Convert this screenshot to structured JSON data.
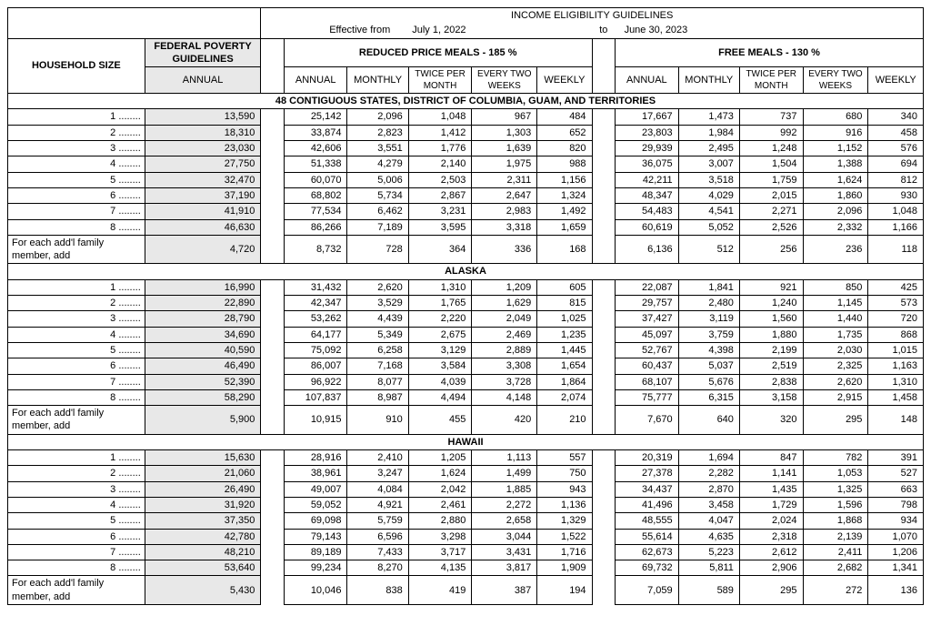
{
  "title": "INCOME ELIGIBILITY GUIDELINES",
  "effective_label": "Effective from",
  "effective_from": "July 1, 2022",
  "effective_to_label": "to",
  "effective_to": "June 30, 2023",
  "col_household": "HOUSEHOLD SIZE",
  "col_fpg_header": "FEDERAL POVERTY GUIDELINES",
  "col_fpg_sub": "ANNUAL",
  "reduced_header": "REDUCED PRICE MEALS - 185 %",
  "free_header": "FREE MEALS - 130 %",
  "sub_annual": "ANNUAL",
  "sub_monthly": "MONTHLY",
  "sub_twice": "TWICE PER MONTH",
  "sub_two_weeks": "EVERY TWO WEEKS",
  "sub_weekly": "WEEKLY",
  "addl_label": "For each add'l family member, add",
  "sections": [
    {
      "name": "48 CONTIGUOUS STATES, DISTRICT OF COLUMBIA, GUAM, AND TERRITORIES",
      "rows": [
        {
          "size": "1 ........",
          "fpg": "13,590",
          "r": [
            "25,142",
            "2,096",
            "1,048",
            "967",
            "484"
          ],
          "f": [
            "17,667",
            "1,473",
            "737",
            "680",
            "340"
          ]
        },
        {
          "size": "2 ........",
          "fpg": "18,310",
          "r": [
            "33,874",
            "2,823",
            "1,412",
            "1,303",
            "652"
          ],
          "f": [
            "23,803",
            "1,984",
            "992",
            "916",
            "458"
          ]
        },
        {
          "size": "3 ........",
          "fpg": "23,030",
          "r": [
            "42,606",
            "3,551",
            "1,776",
            "1,639",
            "820"
          ],
          "f": [
            "29,939",
            "2,495",
            "1,248",
            "1,152",
            "576"
          ]
        },
        {
          "size": "4 ........",
          "fpg": "27,750",
          "r": [
            "51,338",
            "4,279",
            "2,140",
            "1,975",
            "988"
          ],
          "f": [
            "36,075",
            "3,007",
            "1,504",
            "1,388",
            "694"
          ]
        },
        {
          "size": "5 ........",
          "fpg": "32,470",
          "r": [
            "60,070",
            "5,006",
            "2,503",
            "2,311",
            "1,156"
          ],
          "f": [
            "42,211",
            "3,518",
            "1,759",
            "1,624",
            "812"
          ]
        },
        {
          "size": "6 ........",
          "fpg": "37,190",
          "r": [
            "68,802",
            "5,734",
            "2,867",
            "2,647",
            "1,324"
          ],
          "f": [
            "48,347",
            "4,029",
            "2,015",
            "1,860",
            "930"
          ]
        },
        {
          "size": "7 ........",
          "fpg": "41,910",
          "r": [
            "77,534",
            "6,462",
            "3,231",
            "2,983",
            "1,492"
          ],
          "f": [
            "54,483",
            "4,541",
            "2,271",
            "2,096",
            "1,048"
          ]
        },
        {
          "size": "8 ........",
          "fpg": "46,630",
          "r": [
            "86,266",
            "7,189",
            "3,595",
            "3,318",
            "1,659"
          ],
          "f": [
            "60,619",
            "5,052",
            "2,526",
            "2,332",
            "1,166"
          ]
        }
      ],
      "addl": {
        "fpg": "4,720",
        "r": [
          "8,732",
          "728",
          "364",
          "336",
          "168"
        ],
        "f": [
          "6,136",
          "512",
          "256",
          "236",
          "118"
        ]
      }
    },
    {
      "name": "ALASKA",
      "rows": [
        {
          "size": "1 ........",
          "fpg": "16,990",
          "r": [
            "31,432",
            "2,620",
            "1,310",
            "1,209",
            "605"
          ],
          "f": [
            "22,087",
            "1,841",
            "921",
            "850",
            "425"
          ]
        },
        {
          "size": "2 ........",
          "fpg": "22,890",
          "r": [
            "42,347",
            "3,529",
            "1,765",
            "1,629",
            "815"
          ],
          "f": [
            "29,757",
            "2,480",
            "1,240",
            "1,145",
            "573"
          ]
        },
        {
          "size": "3 ........",
          "fpg": "28,790",
          "r": [
            "53,262",
            "4,439",
            "2,220",
            "2,049",
            "1,025"
          ],
          "f": [
            "37,427",
            "3,119",
            "1,560",
            "1,440",
            "720"
          ]
        },
        {
          "size": "4 ........",
          "fpg": "34,690",
          "r": [
            "64,177",
            "5,349",
            "2,675",
            "2,469",
            "1,235"
          ],
          "f": [
            "45,097",
            "3,759",
            "1,880",
            "1,735",
            "868"
          ]
        },
        {
          "size": "5 ........",
          "fpg": "40,590",
          "r": [
            "75,092",
            "6,258",
            "3,129",
            "2,889",
            "1,445"
          ],
          "f": [
            "52,767",
            "4,398",
            "2,199",
            "2,030",
            "1,015"
          ]
        },
        {
          "size": "6 ........",
          "fpg": "46,490",
          "r": [
            "86,007",
            "7,168",
            "3,584",
            "3,308",
            "1,654"
          ],
          "f": [
            "60,437",
            "5,037",
            "2,519",
            "2,325",
            "1,163"
          ]
        },
        {
          "size": "7 ........",
          "fpg": "52,390",
          "r": [
            "96,922",
            "8,077",
            "4,039",
            "3,728",
            "1,864"
          ],
          "f": [
            "68,107",
            "5,676",
            "2,838",
            "2,620",
            "1,310"
          ]
        },
        {
          "size": "8 ........",
          "fpg": "58,290",
          "r": [
            "107,837",
            "8,987",
            "4,494",
            "4,148",
            "2,074"
          ],
          "f": [
            "75,777",
            "6,315",
            "3,158",
            "2,915",
            "1,458"
          ]
        }
      ],
      "addl": {
        "fpg": "5,900",
        "r": [
          "10,915",
          "910",
          "455",
          "420",
          "210"
        ],
        "f": [
          "7,670",
          "640",
          "320",
          "295",
          "148"
        ]
      }
    },
    {
      "name": "HAWAII",
      "rows": [
        {
          "size": "1 ........",
          "fpg": "15,630",
          "r": [
            "28,916",
            "2,410",
            "1,205",
            "1,113",
            "557"
          ],
          "f": [
            "20,319",
            "1,694",
            "847",
            "782",
            "391"
          ]
        },
        {
          "size": "2 ........",
          "fpg": "21,060",
          "r": [
            "38,961",
            "3,247",
            "1,624",
            "1,499",
            "750"
          ],
          "f": [
            "27,378",
            "2,282",
            "1,141",
            "1,053",
            "527"
          ]
        },
        {
          "size": "3 ........",
          "fpg": "26,490",
          "r": [
            "49,007",
            "4,084",
            "2,042",
            "1,885",
            "943"
          ],
          "f": [
            "34,437",
            "2,870",
            "1,435",
            "1,325",
            "663"
          ]
        },
        {
          "size": "4 ........",
          "fpg": "31,920",
          "r": [
            "59,052",
            "4,921",
            "2,461",
            "2,272",
            "1,136"
          ],
          "f": [
            "41,496",
            "3,458",
            "1,729",
            "1,596",
            "798"
          ]
        },
        {
          "size": "5 ........",
          "fpg": "37,350",
          "r": [
            "69,098",
            "5,759",
            "2,880",
            "2,658",
            "1,329"
          ],
          "f": [
            "48,555",
            "4,047",
            "2,024",
            "1,868",
            "934"
          ]
        },
        {
          "size": "6 ........",
          "fpg": "42,780",
          "r": [
            "79,143",
            "6,596",
            "3,298",
            "3,044",
            "1,522"
          ],
          "f": [
            "55,614",
            "4,635",
            "2,318",
            "2,139",
            "1,070"
          ]
        },
        {
          "size": "7 ........",
          "fpg": "48,210",
          "r": [
            "89,189",
            "7,433",
            "3,717",
            "3,431",
            "1,716"
          ],
          "f": [
            "62,673",
            "5,223",
            "2,612",
            "2,411",
            "1,206"
          ]
        },
        {
          "size": "8 ........",
          "fpg": "53,640",
          "r": [
            "99,234",
            "8,270",
            "4,135",
            "3,817",
            "1,909"
          ],
          "f": [
            "69,732",
            "5,811",
            "2,906",
            "2,682",
            "1,341"
          ]
        }
      ],
      "addl": {
        "fpg": "5,430",
        "r": [
          "10,046",
          "838",
          "419",
          "387",
          "194"
        ],
        "f": [
          "7,059",
          "589",
          "295",
          "272",
          "136"
        ]
      }
    }
  ],
  "style": {
    "gray_bg": "#e8e8e8",
    "border_color": "#000000",
    "font_family": "Arial",
    "title_fontsize": 11,
    "body_fontsize": 11,
    "col_widths": {
      "household": 130,
      "fpg": 110,
      "spacer1": 22,
      "data": 58,
      "spacer2": 22
    }
  }
}
